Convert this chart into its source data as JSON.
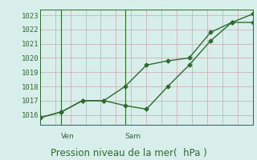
{
  "line1_x": [
    0,
    1,
    2,
    3,
    4,
    5,
    6,
    7,
    8,
    9,
    10
  ],
  "line1_y": [
    1015.8,
    1016.2,
    1017.0,
    1017.0,
    1016.65,
    1016.4,
    1018.0,
    1019.5,
    1021.2,
    1022.5,
    1022.5
  ],
  "line2_x": [
    0,
    1,
    2,
    3,
    4,
    5,
    6,
    7,
    8,
    9,
    10
  ],
  "line2_y": [
    1015.8,
    1016.2,
    1017.0,
    1017.0,
    1018.0,
    1019.5,
    1019.8,
    1020.0,
    1021.8,
    1022.5,
    1023.1
  ],
  "line_color": "#2d6a2d",
  "bg_color": "#d8eeeb",
  "grid_color_h": "#c8a8b0",
  "grid_color_v": "#c8a8b0",
  "xlabel": "Pression niveau de la mer(  hPa )",
  "yticks": [
    1016,
    1017,
    1018,
    1019,
    1020,
    1021,
    1022,
    1023
  ],
  "ylim": [
    1015.3,
    1023.4
  ],
  "xlim": [
    0,
    10
  ],
  "ven_x": 1.0,
  "sam_x": 4.0,
  "xlabel_fontsize": 8.5,
  "tick_fontsize": 6.5,
  "marker": "D",
  "markersize": 2.5,
  "linewidth": 1.0,
  "n_vgrid": 14
}
